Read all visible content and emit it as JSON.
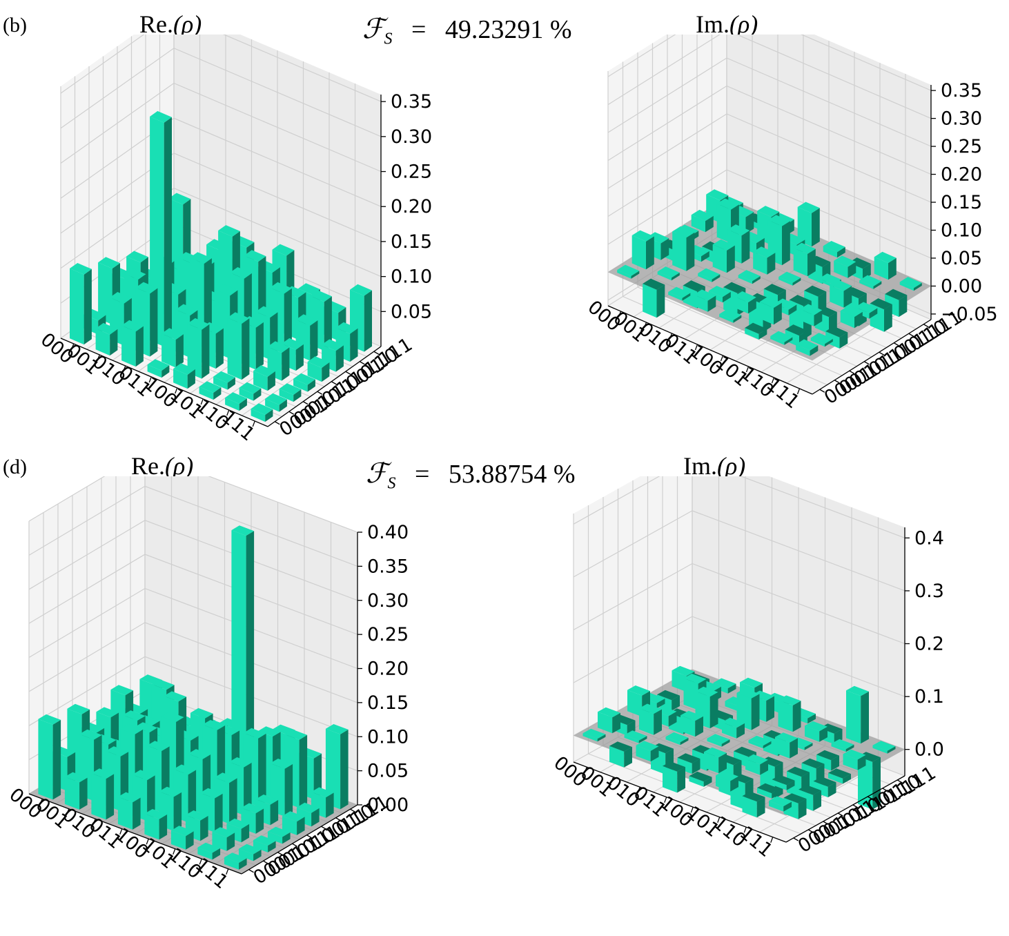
{
  "figure": {
    "rows": [
      {
        "panel_label": "(b)",
        "fidelity": {
          "symbol": "ℱ",
          "subscript": "S",
          "equals": "=",
          "value": "49.23291 %"
        }
      },
      {
        "panel_label": "(d)",
        "fidelity": {
          "symbol": "ℱ",
          "subscript": "S",
          "equals": "=",
          "value": "53.88754 %"
        }
      }
    ]
  },
  "colors": {
    "bar_light": "#19dfb4",
    "bar_dark": "#0a7d62",
    "plane": "#9a9a9a",
    "pane_back": "#ebebeb",
    "pane_side": "#f4f4f4",
    "grid": "#cfcfcf"
  },
  "chart_data": [
    {
      "id": "b-real",
      "type": "bar3d",
      "title": "Re.",
      "title_arg": "(ρ)",
      "x_ticks": [
        "000",
        "001",
        "010",
        "011",
        "100",
        "101",
        "110",
        "111"
      ],
      "y_ticks": [
        "000",
        "001",
        "010",
        "011",
        "100",
        "101",
        "110",
        "111"
      ],
      "z_ticks": [
        "0.05",
        "0.10",
        "0.15",
        "0.20",
        "0.25",
        "0.30",
        "0.35"
      ],
      "zlim": [
        0.0,
        0.36
      ],
      "show_plane": false,
      "matrix": [
        [
          0.1,
          0.02,
          0.08,
          0.05,
          0.06,
          0.02,
          0.02,
          0.1
        ],
        [
          0.03,
          0.06,
          0.08,
          0.04,
          0.07,
          0.05,
          0.03,
          0.01
        ],
        [
          0.05,
          0.09,
          0.32,
          0.06,
          0.09,
          0.07,
          0.08,
          0.04
        ],
        [
          0.01,
          0.04,
          0.06,
          0.12,
          0.05,
          0.13,
          0.1,
          0.01
        ],
        [
          0.02,
          0.07,
          0.05,
          0.09,
          0.1,
          0.11,
          0.08,
          0.09
        ],
        [
          0.01,
          0.01,
          0.08,
          0.06,
          0.06,
          0.08,
          0.06,
          0.05
        ],
        [
          0.01,
          0.01,
          0.02,
          0.04,
          0.03,
          0.05,
          0.07,
          0.04
        ],
        [
          0.01,
          0.01,
          0.01,
          0.01,
          0.02,
          0.03,
          0.04,
          0.08
        ]
      ]
    },
    {
      "id": "b-imag",
      "type": "bar3d",
      "title": "Im.",
      "title_arg": "(ρ)",
      "x_ticks": [
        "000",
        "001",
        "010",
        "011",
        "100",
        "101",
        "110",
        "111"
      ],
      "y_ticks": [
        "000",
        "001",
        "010",
        "011",
        "100",
        "101",
        "110",
        "111"
      ],
      "z_ticks": [
        "−0.05",
        "0.00",
        "0.05",
        "0.10",
        "0.15",
        "0.20",
        "0.25",
        "0.30",
        "0.35"
      ],
      "zlim": [
        -0.06,
        0.36
      ],
      "show_plane": true,
      "matrix": [
        [
          0.0,
          0.05,
          0.03,
          -0.02,
          0.01,
          0.02,
          0.04,
          0.01
        ],
        [
          -0.05,
          0.0,
          0.06,
          0.01,
          -0.02,
          0.06,
          0.03,
          -0.01
        ],
        [
          0.0,
          -0.03,
          0.0,
          0.04,
          0.05,
          0.02,
          0.05,
          0.02
        ],
        [
          0.02,
          0.01,
          -0.04,
          0.0,
          0.03,
          0.07,
          0.02,
          0.06
        ],
        [
          0.0,
          0.02,
          -0.05,
          -0.03,
          0.0,
          0.04,
          -0.03,
          0.01
        ],
        [
          -0.01,
          0.03,
          0.01,
          -0.06,
          -0.04,
          0.0,
          0.02,
          -0.02
        ],
        [
          0.0,
          -0.02,
          0.02,
          -0.03,
          0.03,
          -0.05,
          0.0,
          0.03
        ],
        [
          0.01,
          0.0,
          -0.02,
          0.02,
          0.01,
          -0.04,
          -0.03,
          0.0
        ]
      ]
    },
    {
      "id": "d-real",
      "type": "bar3d",
      "title": "Re.",
      "title_arg": "(ρ)",
      "x_ticks": [
        "000",
        "001",
        "010",
        "011",
        "100",
        "101",
        "110",
        "111"
      ],
      "y_ticks": [
        "000",
        "001",
        "010",
        "011",
        "100",
        "101",
        "110",
        "111"
      ],
      "z_ticks": [
        "0.00",
        "0.05",
        "0.10",
        "0.15",
        "0.20",
        "0.25",
        "0.30",
        "0.35",
        "0.40"
      ],
      "zlim": [
        0.0,
        0.4
      ],
      "show_plane": true,
      "matrix": [
        [
          0.11,
          0.05,
          0.1,
          0.06,
          0.07,
          0.09,
          0.05,
          0.08
        ],
        [
          0.04,
          0.09,
          0.07,
          0.05,
          0.08,
          0.06,
          0.1,
          0.04
        ],
        [
          0.06,
          0.08,
          0.1,
          0.09,
          0.07,
          0.11,
          0.06,
          0.05
        ],
        [
          0.04,
          0.06,
          0.09,
          0.12,
          0.08,
          0.1,
          0.07,
          0.06
        ],
        [
          0.03,
          0.05,
          0.07,
          0.08,
          0.11,
          0.09,
          0.37,
          0.05
        ],
        [
          0.02,
          0.03,
          0.05,
          0.06,
          0.07,
          0.1,
          0.09,
          0.08
        ],
        [
          0.01,
          0.02,
          0.02,
          0.03,
          0.03,
          0.07,
          0.1,
          0.06
        ],
        [
          0.01,
          0.01,
          0.01,
          0.01,
          0.02,
          0.02,
          0.03,
          0.11
        ]
      ]
    },
    {
      "id": "d-imag",
      "type": "bar3d",
      "title": "Im.",
      "title_arg": "(ρ)",
      "x_ticks": [
        "000",
        "001",
        "010",
        "011",
        "100",
        "101",
        "110",
        "111"
      ],
      "y_ticks": [
        "000",
        "001",
        "010",
        "011",
        "100",
        "101",
        "110",
        "111"
      ],
      "z_ticks": [
        "0.0",
        "0.1",
        "0.2",
        "0.3",
        "0.4"
      ],
      "zlim": [
        -0.05,
        0.42
      ],
      "show_plane": true,
      "matrix": [
        [
          0.0,
          0.03,
          -0.02,
          0.04,
          0.01,
          -0.02,
          0.03,
          -0.01
        ],
        [
          -0.03,
          0.0,
          0.04,
          0.02,
          -0.03,
          0.05,
          0.02,
          0.01
        ],
        [
          0.02,
          -0.04,
          0.0,
          0.03,
          0.06,
          -0.02,
          0.01,
          0.03
        ],
        [
          -0.04,
          -0.02,
          -0.03,
          0.0,
          0.02,
          0.06,
          0.04,
          0.02
        ],
        [
          -0.01,
          0.03,
          -0.06,
          -0.02,
          0.0,
          -0.03,
          0.05,
          0.01
        ],
        [
          0.02,
          -0.05,
          0.02,
          -0.06,
          0.03,
          0.0,
          0.02,
          -0.02
        ],
        [
          -0.03,
          -0.01,
          -0.01,
          -0.04,
          -0.05,
          -0.02,
          0.0,
          0.09
        ],
        [
          0.01,
          -0.03,
          -0.03,
          -0.02,
          -0.01,
          0.02,
          -0.09,
          0.0
        ]
      ]
    }
  ]
}
